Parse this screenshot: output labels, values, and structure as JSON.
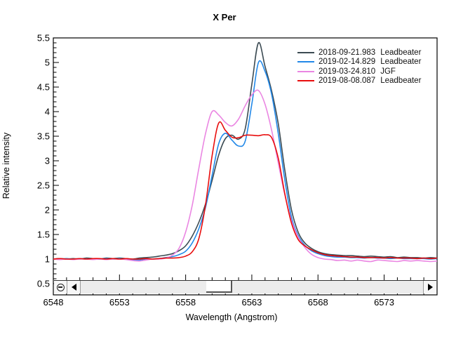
{
  "title": "X Per",
  "axes": {
    "x_label": "Wavelength (Angstrom)",
    "y_label": "Relative intensity",
    "x_tick_labels": [
      "6548",
      "6553",
      "6558",
      "6563",
      "6568",
      "6573"
    ],
    "y_tick_labels": [
      "0.5",
      "1",
      "1.5",
      "2",
      "2.5",
      "3",
      "3.5",
      "4",
      "4.5",
      "5",
      "5.5"
    ]
  },
  "legend": {
    "items": [
      {
        "date": "2018-09-21.983",
        "observer": "Leadbeater",
        "color": "#3c4b53"
      },
      {
        "date": "2019-02-14.829",
        "observer": "Leadbeater",
        "color": "#2288e8"
      },
      {
        "date": "2019-03-24.810",
        "observer": "JGF",
        "color": "#ea86e2"
      },
      {
        "date": "2019-08-08.087",
        "observer": "Leadbeater",
        "color": "#e80d0d"
      }
    ]
  },
  "scrollbar": {
    "icons": [
      "circled-minus-icon",
      "left-arrow-icon",
      "right-arrow-icon"
    ]
  },
  "chart_data": {
    "type": "line",
    "title": "X Per",
    "xlabel": "Wavelength (Angstrom)",
    "ylabel": "Relative intensity",
    "xlim": [
      6548,
      6577
    ],
    "ylim": [
      0.27,
      5.5
    ],
    "x_major_ticks": [
      6548,
      6553,
      6558,
      6563,
      6568,
      6573
    ],
    "x_minor_step": 1,
    "y_major_ticks": [
      0.5,
      1,
      1.5,
      2,
      2.5,
      3,
      3.5,
      4,
      4.5,
      5,
      5.5
    ],
    "y_minor_step": 0.1,
    "grid": false,
    "legend_position": "top-right",
    "x": [
      6548,
      6548.5,
      6549,
      6549.5,
      6550,
      6550.5,
      6551,
      6551.5,
      6552,
      6552.5,
      6553,
      6553.5,
      6554,
      6554.5,
      6555,
      6555.5,
      6556,
      6556.5,
      6557,
      6557.5,
      6558,
      6558.5,
      6559,
      6559.5,
      6560,
      6560.5,
      6561,
      6561.5,
      6562,
      6562.5,
      6563,
      6563.5,
      6564,
      6564.5,
      6565,
      6565.5,
      6566,
      6566.5,
      6567,
      6567.5,
      6568,
      6568.5,
      6569,
      6569.5,
      6570,
      6570.5,
      6571,
      6571.5,
      6572,
      6572.5,
      6573,
      6573.5,
      6574,
      6574.5,
      6575,
      6575.5,
      6576,
      6576.5,
      6577
    ],
    "series": [
      {
        "name": "2018-09-21.983 Leadbeater",
        "color": "#3c4b53",
        "values": [
          1.0,
          1.01,
          1.0,
          1.01,
          1.0,
          1.02,
          1.01,
          1.0,
          1.02,
          1.01,
          1.02,
          1.01,
          1.0,
          1.02,
          1.03,
          1.04,
          1.06,
          1.08,
          1.11,
          1.17,
          1.27,
          1.47,
          1.75,
          2.12,
          2.6,
          3.12,
          3.45,
          3.52,
          3.44,
          3.65,
          4.55,
          5.4,
          4.92,
          4.42,
          3.75,
          2.8,
          2.0,
          1.55,
          1.33,
          1.22,
          1.15,
          1.11,
          1.09,
          1.08,
          1.07,
          1.07,
          1.06,
          1.05,
          1.06,
          1.05,
          1.04,
          1.05,
          1.03,
          1.04,
          1.03,
          1.03,
          1.02,
          1.03,
          1.02
        ]
      },
      {
        "name": "2019-02-14.829 Leadbeater",
        "color": "#2288e8",
        "values": [
          1.0,
          1.0,
          1.01,
          1.0,
          1.01,
          1.0,
          1.01,
          1.0,
          1.01,
          1.0,
          1.01,
          1.0,
          0.99,
          0.98,
          1.0,
          1.0,
          1.01,
          1.03,
          1.05,
          1.09,
          1.16,
          1.33,
          1.62,
          2.05,
          2.7,
          3.35,
          3.56,
          3.42,
          3.3,
          3.4,
          4.15,
          5.0,
          4.82,
          4.35,
          3.55,
          2.6,
          1.85,
          1.48,
          1.28,
          1.17,
          1.11,
          1.07,
          1.05,
          1.04,
          1.04,
          1.03,
          1.03,
          1.02,
          1.03,
          1.02,
          1.02,
          1.01,
          1.02,
          1.01,
          1.01,
          1.01,
          1.01,
          1.0,
          1.01
        ]
      },
      {
        "name": "2019-03-24.810 JGF",
        "color": "#ea86e2",
        "values": [
          1.0,
          0.99,
          1.0,
          0.99,
          1.0,
          1.0,
          0.99,
          1.0,
          0.99,
          1.0,
          1.0,
          0.99,
          0.97,
          0.96,
          0.98,
          1.0,
          1.0,
          1.02,
          1.08,
          1.22,
          1.55,
          2.1,
          2.85,
          3.55,
          4.0,
          3.93,
          3.78,
          3.71,
          3.85,
          4.12,
          4.34,
          4.43,
          4.15,
          3.62,
          2.95,
          2.3,
          1.78,
          1.45,
          1.24,
          1.1,
          1.03,
          1.0,
          0.99,
          0.97,
          0.98,
          0.96,
          0.98,
          0.96,
          0.95,
          0.98,
          0.97,
          0.96,
          0.95,
          0.97,
          0.96,
          0.97,
          0.96,
          0.95,
          0.96
        ]
      },
      {
        "name": "2019-08-08.087 Leadbeater",
        "color": "#e80d0d",
        "values": [
          1.0,
          1.01,
          1.0,
          1.0,
          1.01,
          1.0,
          1.01,
          1.01,
          1.0,
          1.01,
          1.0,
          1.01,
          1.0,
          1.0,
          1.01,
          1.0,
          1.01,
          1.02,
          1.02,
          1.03,
          1.06,
          1.15,
          1.42,
          2.1,
          3.1,
          3.77,
          3.62,
          3.48,
          3.47,
          3.52,
          3.52,
          3.51,
          3.53,
          3.47,
          3.05,
          2.32,
          1.73,
          1.4,
          1.27,
          1.19,
          1.13,
          1.09,
          1.07,
          1.06,
          1.05,
          1.04,
          1.04,
          1.03,
          1.03,
          1.03,
          1.02,
          1.03,
          1.02,
          1.02,
          1.02,
          1.01,
          1.02,
          1.01,
          1.02
        ]
      }
    ]
  }
}
